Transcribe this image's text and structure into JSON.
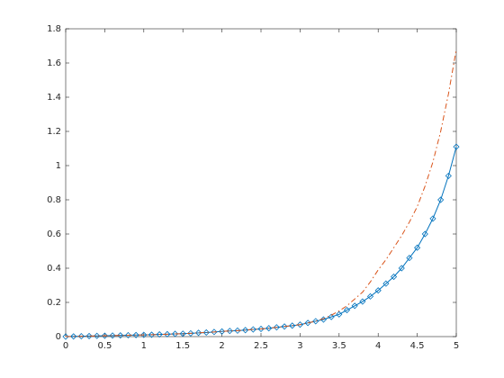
{
  "chart_data": {
    "type": "line",
    "x": [
      0,
      0.1,
      0.2,
      0.3,
      0.4,
      0.5,
      0.6,
      0.7,
      0.8,
      0.9,
      1,
      1.1,
      1.2,
      1.3,
      1.4,
      1.5,
      1.6,
      1.7,
      1.8,
      1.9,
      2,
      2.1,
      2.2,
      2.3,
      2.4,
      2.5,
      2.6,
      2.7,
      2.8,
      2.9,
      3,
      3.1,
      3.2,
      3.3,
      3.4,
      3.5,
      3.6,
      3.7,
      3.8,
      3.9,
      4,
      4.1,
      4.2,
      4.3,
      4.4,
      4.5,
      4.6,
      4.7,
      4.8,
      4.9,
      5
    ],
    "series": [
      {
        "color": "#0072bd",
        "marker": "diamond",
        "linestyle": "solid",
        "values": [
          0,
          0.001,
          0.002,
          0.003,
          0.004,
          0.005,
          0.006,
          0.007,
          0.008,
          0.009,
          0.01,
          0.011,
          0.013,
          0.014,
          0.016,
          0.017,
          0.019,
          0.022,
          0.024,
          0.027,
          0.03,
          0.033,
          0.035,
          0.038,
          0.042,
          0.045,
          0.049,
          0.054,
          0.059,
          0.064,
          0.07,
          0.08,
          0.09,
          0.1,
          0.115,
          0.13,
          0.155,
          0.18,
          0.205,
          0.235,
          0.27,
          0.31,
          0.35,
          0.4,
          0.46,
          0.52,
          0.6,
          0.69,
          0.8,
          0.94,
          1.11
        ]
      },
      {
        "color": "#d95319",
        "marker": "none",
        "linestyle": "dashdot",
        "values": [
          0,
          0.001,
          0.002,
          0.003,
          0.004,
          0.005,
          0.006,
          0.007,
          0.008,
          0.009,
          0.01,
          0.011,
          0.013,
          0.014,
          0.016,
          0.017,
          0.019,
          0.022,
          0.024,
          0.027,
          0.03,
          0.033,
          0.035,
          0.038,
          0.042,
          0.045,
          0.049,
          0.054,
          0.059,
          0.064,
          0.07,
          0.08,
          0.09,
          0.105,
          0.125,
          0.15,
          0.18,
          0.22,
          0.26,
          0.32,
          0.39,
          0.45,
          0.52,
          0.59,
          0.67,
          0.76,
          0.88,
          1.02,
          1.2,
          1.42,
          1.68
        ]
      }
    ],
    "xlim": [
      0,
      5
    ],
    "xticks": [
      0,
      0.5,
      1,
      1.5,
      2,
      2.5,
      3,
      3.5,
      4,
      4.5,
      5
    ],
    "ylim": [
      0,
      1.8
    ],
    "yticks": [
      0,
      0.2,
      0.4,
      0.6,
      0.8,
      1,
      1.2,
      1.4,
      1.6,
      1.8
    ]
  }
}
